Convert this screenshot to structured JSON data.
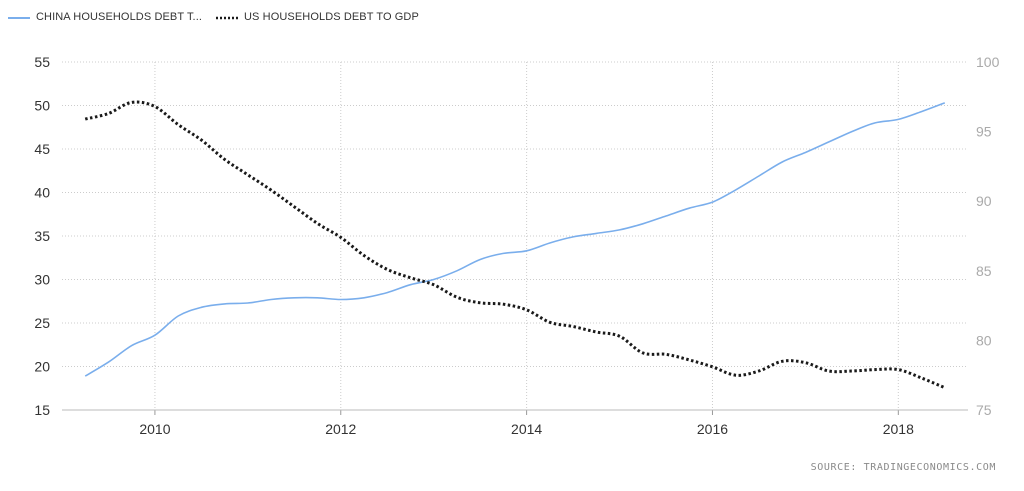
{
  "legend": {
    "china_label": "CHINA HOUSEHOLDS DEBT T...",
    "us_label": "US HOUSEHOLDS DEBT TO GDP"
  },
  "source": "SOURCE:  TRADINGECONOMICS.COM",
  "colors": {
    "china": "#7aaeec",
    "us": "#1a1a1a",
    "grid": "#cccccc",
    "left_axis_text": "#333333",
    "right_axis_text": "#aaaaaa"
  },
  "chart_data": {
    "type": "line",
    "left_axis": {
      "min": 15,
      "max": 55,
      "ticks": [
        15,
        20,
        25,
        30,
        35,
        40,
        45,
        50,
        55
      ]
    },
    "right_axis": {
      "min": 75,
      "max": 100,
      "ticks": [
        75,
        80,
        85,
        90,
        95,
        100
      ]
    },
    "x_axis": {
      "min": 2009.0,
      "max": 2018.75,
      "ticks": [
        "2010",
        "2012",
        "2014",
        "2016",
        "2018"
      ]
    },
    "grid": true,
    "legend_position": "top-left",
    "series": [
      {
        "name": "CHINA HOUSEHOLDS DEBT T...",
        "axis": "left",
        "style": "solid",
        "x": [
          2009.25,
          2009.5,
          2009.75,
          2010.0,
          2010.25,
          2010.5,
          2010.75,
          2011.0,
          2011.25,
          2011.5,
          2011.75,
          2012.0,
          2012.25,
          2012.5,
          2012.75,
          2013.0,
          2013.25,
          2013.5,
          2013.75,
          2014.0,
          2014.25,
          2014.5,
          2014.75,
          2015.0,
          2015.25,
          2015.5,
          2015.75,
          2016.0,
          2016.25,
          2016.5,
          2016.75,
          2017.0,
          2017.25,
          2017.5,
          2017.75,
          2018.0,
          2018.25,
          2018.5
        ],
        "y": [
          18.9,
          20.5,
          22.4,
          23.6,
          25.8,
          26.8,
          27.2,
          27.3,
          27.7,
          27.9,
          27.9,
          27.7,
          27.9,
          28.5,
          29.4,
          30.0,
          31.0,
          32.3,
          33.0,
          33.3,
          34.2,
          34.9,
          35.3,
          35.7,
          36.4,
          37.3,
          38.2,
          38.9,
          40.3,
          41.9,
          43.5,
          44.6,
          45.8,
          47.0,
          48.0,
          48.4,
          49.3,
          50.3
        ]
      },
      {
        "name": "US HOUSEHOLDS DEBT TO GDP",
        "axis": "right",
        "style": "dotted",
        "x": [
          2009.25,
          2009.5,
          2009.75,
          2010.0,
          2010.25,
          2010.5,
          2010.75,
          2011.0,
          2011.25,
          2011.5,
          2011.75,
          2012.0,
          2012.25,
          2012.5,
          2012.75,
          2013.0,
          2013.25,
          2013.5,
          2013.75,
          2014.0,
          2014.25,
          2014.5,
          2014.75,
          2015.0,
          2015.25,
          2015.5,
          2015.75,
          2016.0,
          2016.25,
          2016.5,
          2016.75,
          2017.0,
          2017.25,
          2017.5,
          2017.75,
          2018.0,
          2018.25,
          2018.5
        ],
        "y": [
          95.9,
          96.3,
          97.1,
          96.8,
          95.5,
          94.4,
          93.0,
          91.9,
          90.8,
          89.6,
          88.4,
          87.4,
          86.1,
          85.1,
          84.5,
          84.0,
          83.1,
          82.7,
          82.6,
          82.2,
          81.3,
          81.0,
          80.6,
          80.3,
          79.1,
          79.0,
          78.6,
          78.1,
          77.5,
          77.8,
          78.5,
          78.4,
          77.8,
          77.8,
          77.9,
          77.9,
          77.3,
          76.6
        ]
      }
    ]
  }
}
